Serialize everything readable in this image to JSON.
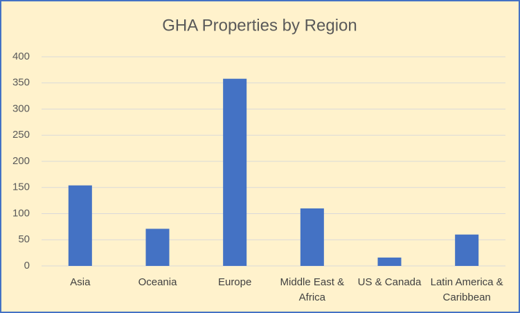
{
  "chart_data": {
    "type": "bar",
    "title": "GHA Properties by Region",
    "categories": [
      "Asia",
      "Oceania",
      "Europe",
      "Middle East & Africa",
      "US & Canada",
      "Latin America & Caribbean"
    ],
    "values": [
      154,
      71,
      358,
      110,
      16,
      60
    ],
    "color": "#4472c4",
    "ylim": [
      0,
      400
    ],
    "yticks": [
      0,
      50,
      100,
      150,
      200,
      250,
      300,
      350,
      400
    ],
    "grid": true
  }
}
